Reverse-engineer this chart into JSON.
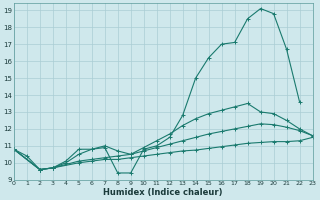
{
  "xlabel": "Humidex (Indice chaleur)",
  "xlim": [
    0,
    23
  ],
  "ylim": [
    9,
    19.4
  ],
  "yticks": [
    9,
    10,
    11,
    12,
    13,
    14,
    15,
    16,
    17,
    18,
    19
  ],
  "xticks": [
    0,
    1,
    2,
    3,
    4,
    5,
    6,
    7,
    8,
    9,
    10,
    11,
    12,
    13,
    14,
    15,
    16,
    17,
    18,
    19,
    20,
    21,
    22,
    23
  ],
  "line_color": "#1a7a6e",
  "bg_color": "#cfe8ec",
  "grid_color": "#aacdd4",
  "lines": [
    {
      "x": [
        0,
        1,
        2,
        3,
        4,
        5,
        6,
        7,
        8,
        9,
        10,
        11,
        12,
        13,
        14,
        15,
        16,
        17,
        18,
        19,
        20,
        21,
        22
      ],
      "y": [
        10.8,
        10.4,
        9.6,
        9.7,
        10.1,
        10.8,
        10.8,
        10.9,
        9.4,
        9.4,
        10.8,
        11.0,
        11.5,
        12.8,
        15.0,
        16.2,
        17.0,
        17.1,
        18.5,
        19.1,
        18.8,
        16.7,
        13.6
      ]
    },
    {
      "x": [
        0,
        2,
        3,
        4,
        5,
        6,
        7,
        8,
        9,
        10,
        11,
        12,
        13,
        14,
        15,
        16,
        17,
        18,
        19,
        20,
        21,
        22,
        23
      ],
      "y": [
        10.8,
        9.6,
        9.7,
        10.0,
        10.5,
        10.8,
        11.0,
        10.7,
        10.5,
        10.9,
        11.3,
        11.7,
        12.2,
        12.6,
        12.9,
        13.1,
        13.3,
        13.5,
        13.0,
        12.9,
        12.5,
        12.0,
        11.6
      ]
    },
    {
      "x": [
        0,
        2,
        3,
        5,
        6,
        7,
        8,
        9,
        10,
        11,
        12,
        13,
        14,
        15,
        16,
        17,
        18,
        19,
        20,
        21,
        22,
        23
      ],
      "y": [
        10.8,
        9.6,
        9.7,
        10.1,
        10.2,
        10.3,
        10.4,
        10.5,
        10.7,
        10.9,
        11.1,
        11.3,
        11.5,
        11.7,
        11.85,
        12.0,
        12.15,
        12.3,
        12.25,
        12.1,
        11.9,
        11.6
      ]
    },
    {
      "x": [
        0,
        2,
        3,
        5,
        6,
        7,
        8,
        9,
        10,
        11,
        12,
        13,
        14,
        15,
        16,
        17,
        18,
        19,
        20,
        21,
        22,
        23
      ],
      "y": [
        10.8,
        9.6,
        9.7,
        10.0,
        10.1,
        10.2,
        10.2,
        10.3,
        10.4,
        10.5,
        10.6,
        10.7,
        10.75,
        10.85,
        10.95,
        11.05,
        11.15,
        11.2,
        11.25,
        11.25,
        11.3,
        11.5
      ]
    }
  ]
}
